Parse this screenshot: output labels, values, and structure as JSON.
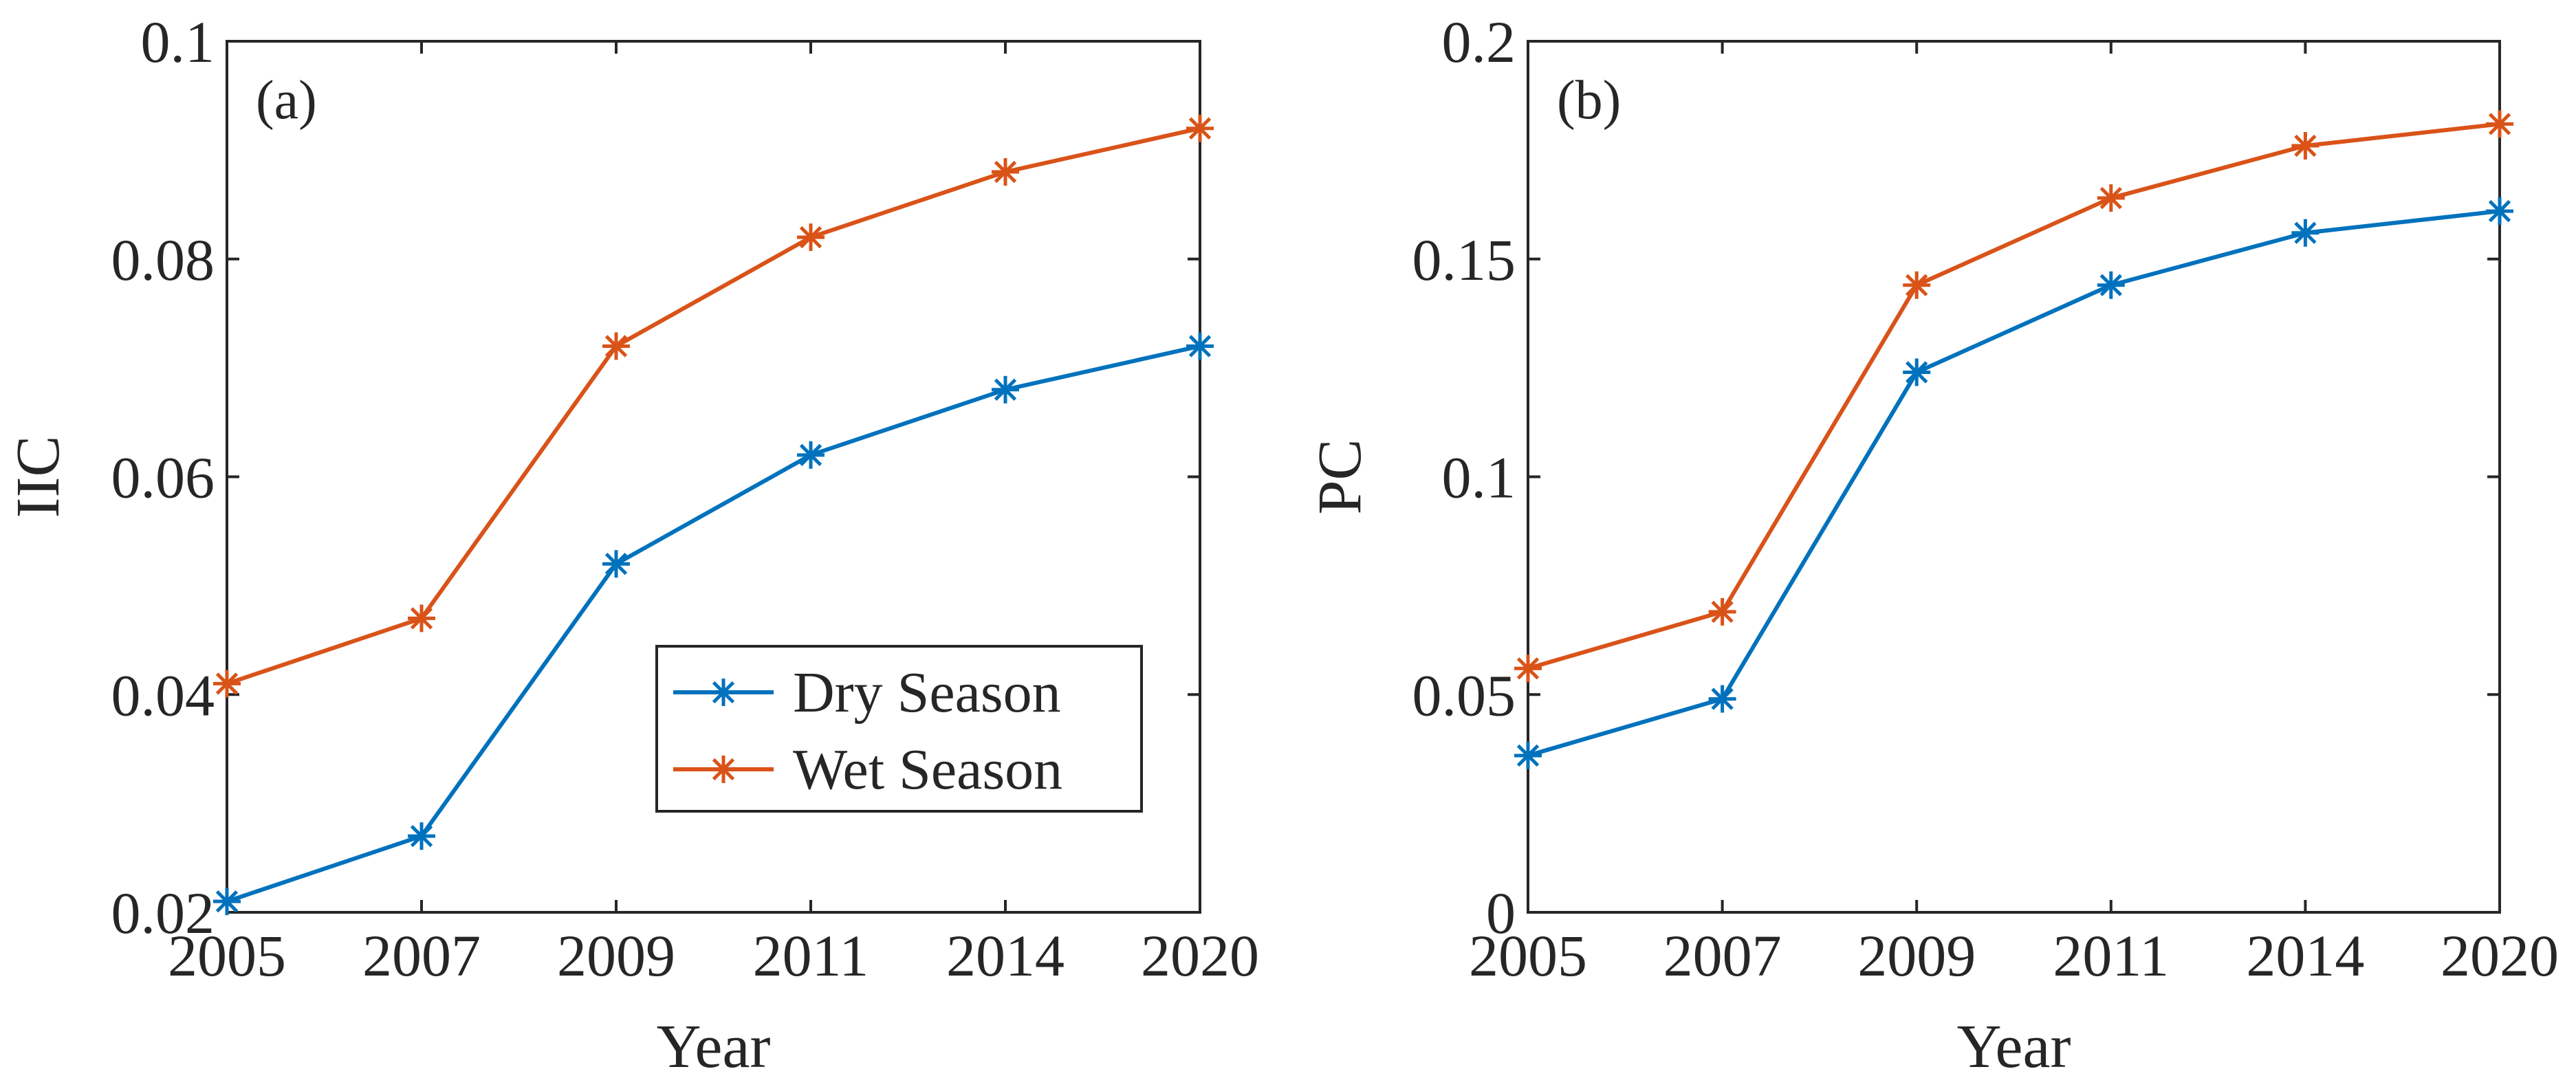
{
  "chart_data": [
    {
      "type": "line",
      "panel_label": "(a)",
      "categories": [
        "2005",
        "2007",
        "2009",
        "2011",
        "2014",
        "2020"
      ],
      "xlabel": "Year",
      "ylabel": "IIC",
      "ylim": [
        0.02,
        0.1
      ],
      "yticks": [
        0.02,
        0.04,
        0.06,
        0.08,
        0.1
      ],
      "ytick_labels": [
        "0.02",
        "0.04",
        "0.06",
        "0.08",
        "0.1"
      ],
      "series": [
        {
          "name": "Dry Season",
          "color": "#0072BD",
          "values": [
            0.021,
            0.027,
            0.052,
            0.062,
            0.068,
            0.072
          ]
        },
        {
          "name": "Wet Season",
          "color": "#D95319",
          "values": [
            0.041,
            0.047,
            0.072,
            0.082,
            0.088,
            0.092
          ]
        }
      ],
      "legend": {
        "placement": "bottom-right",
        "entries": [
          "Dry Season",
          "Wet Season"
        ]
      }
    },
    {
      "type": "line",
      "panel_label": "(b)",
      "categories": [
        "2005",
        "2007",
        "2009",
        "2011",
        "2014",
        "2020"
      ],
      "xlabel": "Year",
      "ylabel": "PC",
      "ylim": [
        0,
        0.2
      ],
      "yticks": [
        0,
        0.05,
        0.1,
        0.15,
        0.2
      ],
      "ytick_labels": [
        "0",
        "0.05",
        "0.1",
        "0.15",
        "0.2"
      ],
      "series": [
        {
          "name": "Dry Season",
          "color": "#0072BD",
          "values": [
            0.036,
            0.049,
            0.124,
            0.144,
            0.156,
            0.161
          ]
        },
        {
          "name": "Wet Season",
          "color": "#D95319",
          "values": [
            0.056,
            0.069,
            0.144,
            0.164,
            0.176,
            0.181
          ]
        }
      ]
    }
  ]
}
